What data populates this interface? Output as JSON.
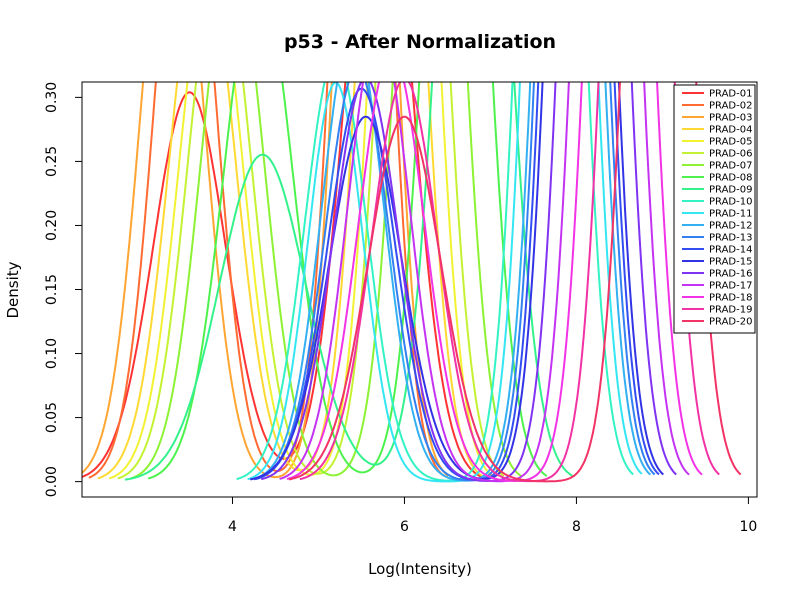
{
  "chart_data": {
    "type": "line",
    "title": "p53 - After Normalization",
    "xlabel": "Log(Intensity)",
    "ylabel": "Density",
    "xlim": [
      2.25,
      10.1
    ],
    "ylim": [
      -0.012,
      0.312
    ],
    "xticks": [
      {
        "v": 4,
        "label": "4"
      },
      {
        "v": 6,
        "label": "6"
      },
      {
        "v": 8,
        "label": "8"
      },
      {
        "v": 10,
        "label": "10"
      }
    ],
    "yticks": [
      {
        "v": 0.0,
        "label": "0.00"
      },
      {
        "v": 0.05,
        "label": "0.05"
      },
      {
        "v": 0.1,
        "label": "0.10"
      },
      {
        "v": 0.15,
        "label": "0.15"
      },
      {
        "v": 0.2,
        "label": "0.20"
      },
      {
        "v": 0.25,
        "label": "0.25"
      },
      {
        "v": 0.3,
        "label": "0.30"
      }
    ],
    "grid": false,
    "legend_position": "top-right",
    "series": [
      {
        "name": "PRAD-01",
        "color": "#FF3333",
        "components": [
          {
            "m": 3.5,
            "s": 0.42,
            "w": 0.32
          },
          {
            "m": 5.7,
            "s": 0.38,
            "w": 0.5
          }
        ]
      },
      {
        "name": "PRAD-02",
        "color": "#FF6B33",
        "components": [
          {
            "m": 3.45,
            "s": 0.35,
            "w": 0.44
          },
          {
            "m": 5.5,
            "s": 0.3,
            "w": 0.56
          }
        ]
      },
      {
        "name": "PRAD-03",
        "color": "#FFA533",
        "components": [
          {
            "m": 3.3,
            "s": 0.36,
            "w": 0.44
          },
          {
            "m": 5.55,
            "s": 0.3,
            "w": 0.56
          }
        ]
      },
      {
        "name": "PRAD-04",
        "color": "#FFD933",
        "components": [
          {
            "m": 3.65,
            "s": 0.38,
            "w": 0.4
          },
          {
            "m": 5.85,
            "s": 0.33,
            "w": 0.6
          }
        ]
      },
      {
        "name": "PRAD-05",
        "color": "#F2F233",
        "components": [
          {
            "m": 3.75,
            "s": 0.37,
            "w": 0.38
          },
          {
            "m": 6.0,
            "s": 0.32,
            "w": 0.62
          }
        ]
      },
      {
        "name": "PRAD-06",
        "color": "#C4F233",
        "components": [
          {
            "m": 3.85,
            "s": 0.37,
            "w": 0.38
          },
          {
            "m": 6.1,
            "s": 0.33,
            "w": 0.62
          }
        ]
      },
      {
        "name": "PRAD-07",
        "color": "#8CF233",
        "components": [
          {
            "m": 4.0,
            "s": 0.37,
            "w": 0.38
          },
          {
            "m": 6.3,
            "s": 0.33,
            "w": 0.62
          }
        ]
      },
      {
        "name": "PRAD-08",
        "color": "#4DF24D",
        "components": [
          {
            "m": 4.3,
            "s": 0.4,
            "w": 0.4
          },
          {
            "m": 6.6,
            "s": 0.33,
            "w": 0.6
          }
        ]
      },
      {
        "name": "PRAD-09",
        "color": "#33F28C",
        "components": [
          {
            "m": 4.35,
            "s": 0.5,
            "w": 0.32
          },
          {
            "m": 6.8,
            "s": 0.36,
            "w": 0.68
          }
        ]
      },
      {
        "name": "PRAD-10",
        "color": "#33F2C4",
        "components": [
          {
            "m": 5.2,
            "s": 0.36,
            "w": 0.3
          },
          {
            "m": 7.7,
            "s": 0.3,
            "w": 0.7
          }
        ]
      },
      {
        "name": "PRAD-11",
        "color": "#33E6F2",
        "components": [
          {
            "m": 5.2,
            "s": 0.32,
            "w": 0.25
          },
          {
            "m": 7.8,
            "s": 0.3,
            "w": 0.75
          }
        ]
      },
      {
        "name": "PRAD-12",
        "color": "#33B0F2",
        "components": [
          {
            "m": 5.4,
            "s": 0.36,
            "w": 0.32
          },
          {
            "m": 7.9,
            "s": 0.3,
            "w": 0.68
          }
        ]
      },
      {
        "name": "PRAD-13",
        "color": "#3380F2",
        "components": [
          {
            "m": 5.45,
            "s": 0.37,
            "w": 0.3
          },
          {
            "m": 7.95,
            "s": 0.3,
            "w": 0.7
          }
        ]
      },
      {
        "name": "PRAD-14",
        "color": "#334DF2",
        "components": [
          {
            "m": 5.5,
            "s": 0.39,
            "w": 0.3
          },
          {
            "m": 8.0,
            "s": 0.3,
            "w": 0.7
          }
        ]
      },
      {
        "name": "PRAD-15",
        "color": "#3333E6",
        "components": [
          {
            "m": 5.55,
            "s": 0.42,
            "w": 0.3
          },
          {
            "m": 8.05,
            "s": 0.3,
            "w": 0.7
          }
        ]
      },
      {
        "name": "PRAD-16",
        "color": "#8033F2",
        "components": [
          {
            "m": 5.55,
            "s": 0.38,
            "w": 0.3
          },
          {
            "m": 8.2,
            "s": 0.3,
            "w": 0.7
          }
        ]
      },
      {
        "name": "PRAD-17",
        "color": "#C433F2",
        "components": [
          {
            "m": 5.7,
            "s": 0.36,
            "w": 0.32
          },
          {
            "m": 8.35,
            "s": 0.3,
            "w": 0.68
          }
        ]
      },
      {
        "name": "PRAD-18",
        "color": "#F233E6",
        "components": [
          {
            "m": 5.85,
            "s": 0.38,
            "w": 0.32
          },
          {
            "m": 8.5,
            "s": 0.3,
            "w": 0.68
          }
        ]
      },
      {
        "name": "PRAD-19",
        "color": "#F233A5",
        "components": [
          {
            "m": 6.0,
            "s": 0.38,
            "w": 0.3
          },
          {
            "m": 8.7,
            "s": 0.3,
            "w": 0.7
          }
        ]
      },
      {
        "name": "PRAD-20",
        "color": "#F23366",
        "components": [
          {
            "m": 6.0,
            "s": 0.42,
            "w": 0.3
          },
          {
            "m": 8.95,
            "s": 0.3,
            "w": 0.7
          }
        ]
      }
    ]
  }
}
